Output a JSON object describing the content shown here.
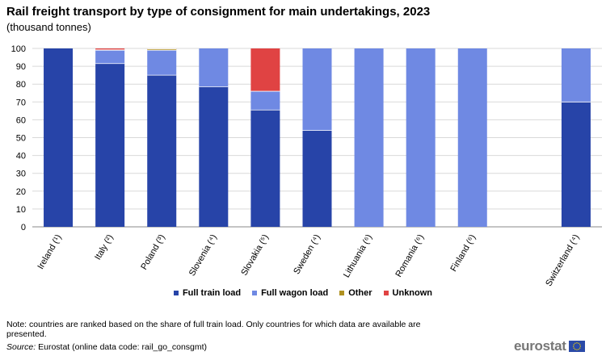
{
  "header": {
    "title": "Rail freight transport by type of consignment for main undertakings, 2023",
    "subtitle": "(thousand  tonnes)"
  },
  "colors": {
    "full_train_load": "#2744a8",
    "full_wagon_load": "#6f89e3",
    "other": "#b09120",
    "unknown": "#e04343",
    "grid": "#d9d9d9",
    "axis": "#888888"
  },
  "chart_data": {
    "type": "bar",
    "stacked": true,
    "title": "Rail freight transport by type of consignment for main undertakings, 2023",
    "subtitle": "(thousand  tonnes)",
    "categories": [
      "Ireland (¹)",
      "Italy (²)",
      "Poland (³)",
      "Slovenia (⁴)",
      "Slovakia (⁵)",
      "Sweden (⁴)",
      "Lithuania (⁶)",
      "Romania (⁶)",
      "Finland (⁶)",
      "",
      "Switzerland (⁴)"
    ],
    "series": [
      {
        "name": "Full train load",
        "color": "#2744a8",
        "values": [
          100,
          91.5,
          85,
          78.5,
          65.5,
          54,
          0,
          0,
          0,
          null,
          70
        ]
      },
      {
        "name": "Full wagon load",
        "color": "#6f89e3",
        "values": [
          0,
          7.5,
          14,
          21.5,
          10.5,
          46,
          100,
          100,
          100,
          null,
          30
        ]
      },
      {
        "name": "Other",
        "color": "#b09120",
        "values": [
          0,
          0.2,
          0.8,
          0,
          0,
          0,
          0,
          0,
          0,
          null,
          0
        ]
      },
      {
        "name": "Unknown",
        "color": "#e04343",
        "values": [
          0,
          0.8,
          0.2,
          0,
          24,
          0,
          0,
          0,
          0,
          null,
          0
        ]
      }
    ],
    "ylim": [
      0,
      100
    ],
    "yticks": [
      0,
      10,
      20,
      30,
      40,
      50,
      60,
      70,
      80,
      90,
      100
    ],
    "grid": true,
    "legend": "bottom"
  },
  "footer": {
    "note": "Note: countries are ranked based on the share of full train load. Only countries for which data are available are presented.",
    "source_label": "Source:",
    "source_text": " Eurostat (online data code: rail_go_consgmt)",
    "logo": "eurostat"
  }
}
